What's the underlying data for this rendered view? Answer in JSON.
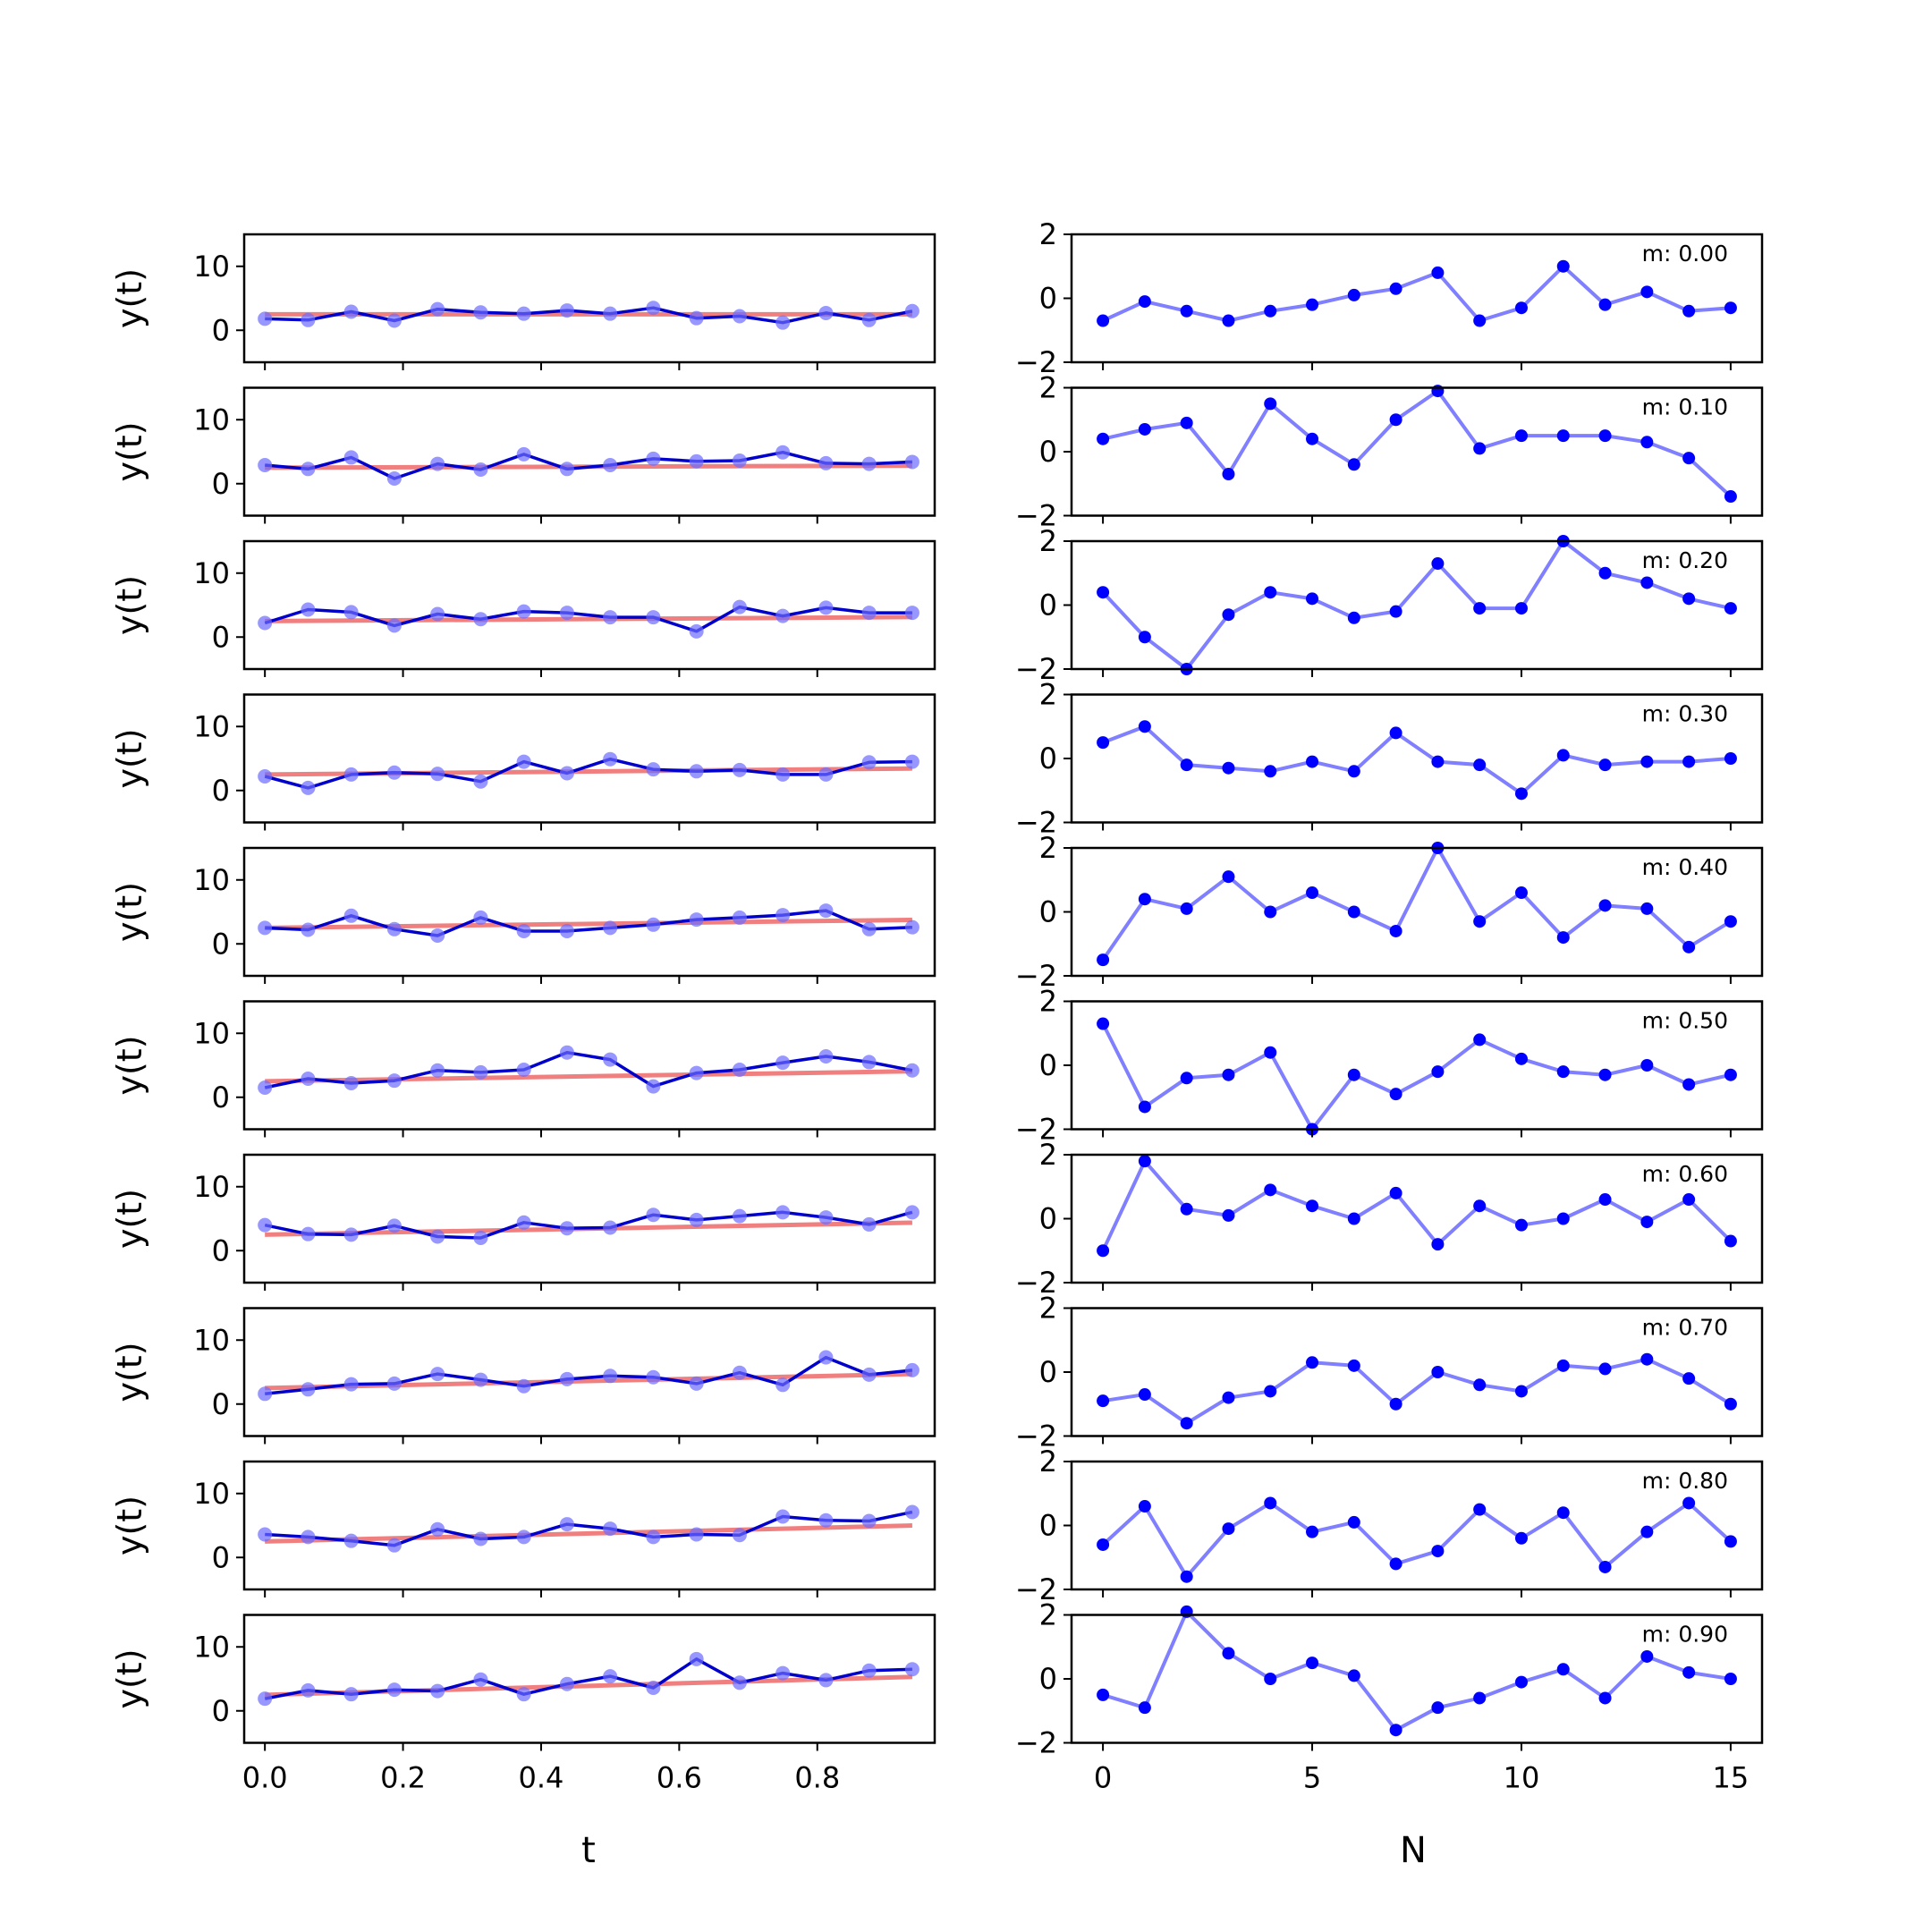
{
  "colors": {
    "data_line": "#0000cc",
    "data_points": "#6b6bff",
    "fit_line": "#f08080",
    "residual": "#0000ff"
  },
  "chart_data": [
    {
      "type": "line",
      "panel": "time-series",
      "xlabel": "t",
      "ylabel": "y(t)",
      "xlim": [
        -0.03,
        0.97
      ],
      "ylim": [
        -5,
        15
      ],
      "xticks": [
        "0.0",
        "0.2",
        "0.4",
        "0.6",
        "0.8"
      ],
      "yticks": [
        "0",
        "10"
      ],
      "x": [
        0.0,
        0.0625,
        0.125,
        0.1875,
        0.25,
        0.3125,
        0.375,
        0.4375,
        0.5,
        0.5625,
        0.625,
        0.6875,
        0.75,
        0.8125,
        0.875,
        0.9375
      ],
      "series": [
        {
          "m": 0.0,
          "intercept": 2.5,
          "y": [
            1.8,
            1.6,
            2.9,
            1.5,
            3.3,
            2.8,
            2.6,
            3.1,
            2.6,
            3.5,
            1.9,
            2.2,
            1.2,
            2.7,
            1.6,
            3.0
          ]
        },
        {
          "m": 0.1,
          "intercept": 2.5,
          "y": [
            2.9,
            2.3,
            4.1,
            0.8,
            3.1,
            2.2,
            4.6,
            2.3,
            2.9,
            3.9,
            3.5,
            3.6,
            4.9,
            3.2,
            3.1,
            3.4
          ]
        },
        {
          "m": 0.2,
          "intercept": 2.5,
          "y": [
            2.2,
            4.3,
            3.9,
            1.8,
            3.6,
            2.8,
            4.0,
            3.8,
            3.1,
            3.1,
            0.9,
            4.7,
            3.3,
            4.6,
            3.8,
            3.8
          ]
        },
        {
          "m": 0.3,
          "intercept": 2.5,
          "y": [
            2.2,
            0.4,
            2.5,
            2.8,
            2.6,
            1.4,
            4.5,
            2.7,
            4.9,
            3.3,
            3.0,
            3.2,
            2.5,
            2.5,
            4.4,
            4.5
          ]
        },
        {
          "m": 0.4,
          "intercept": 2.5,
          "y": [
            2.5,
            2.2,
            4.4,
            2.3,
            1.3,
            4.1,
            2.0,
            2.0,
            2.5,
            3.0,
            3.8,
            4.1,
            4.5,
            5.2,
            2.3,
            2.6
          ]
        },
        {
          "m": 0.5,
          "intercept": 2.5,
          "y": [
            1.5,
            2.9,
            2.2,
            2.6,
            4.2,
            3.9,
            4.3,
            7.0,
            5.9,
            1.7,
            3.8,
            4.3,
            5.4,
            6.4,
            5.5,
            4.2
          ]
        },
        {
          "m": 0.6,
          "intercept": 2.5,
          "y": [
            4.0,
            2.6,
            2.5,
            3.9,
            2.2,
            2.0,
            4.4,
            3.5,
            3.6,
            5.6,
            4.8,
            5.4,
            6.0,
            5.2,
            4.1,
            6.0
          ]
        },
        {
          "m": 0.7,
          "intercept": 2.5,
          "y": [
            1.6,
            2.3,
            3.1,
            3.2,
            4.7,
            3.8,
            2.8,
            3.9,
            4.4,
            4.2,
            3.2,
            4.9,
            3.0,
            7.3,
            4.6,
            5.3
          ]
        },
        {
          "m": 0.8,
          "intercept": 2.5,
          "y": [
            3.6,
            3.2,
            2.6,
            1.9,
            4.4,
            2.9,
            3.2,
            5.2,
            4.5,
            3.2,
            3.6,
            3.5,
            6.4,
            5.8,
            5.7,
            7.1
          ]
        },
        {
          "m": 0.9,
          "intercept": 2.5,
          "y": [
            1.9,
            3.2,
            2.6,
            3.3,
            3.1,
            4.9,
            2.6,
            4.2,
            5.4,
            3.6,
            8.1,
            4.4,
            5.9,
            4.8,
            6.3,
            6.5
          ]
        }
      ]
    },
    {
      "type": "line",
      "panel": "residuals",
      "xlabel": "N",
      "ylabel": "",
      "xlim": [
        -0.75,
        15.75
      ],
      "ylim": [
        -2,
        2
      ],
      "xticks": [
        "0",
        "5",
        "10",
        "15"
      ],
      "yticks": [
        "−2",
        "0",
        "2"
      ],
      "x": [
        0,
        1,
        2,
        3,
        4,
        5,
        6,
        7,
        8,
        9,
        10,
        11,
        12,
        13,
        14,
        15
      ],
      "series": [
        {
          "label": "m: 0.00",
          "y": [
            -0.7,
            -0.1,
            -0.4,
            -0.7,
            -0.4,
            -0.2,
            0.1,
            0.3,
            0.8,
            -0.7,
            -0.3,
            1.0,
            -0.2,
            0.2,
            -0.4,
            -0.3
          ]
        },
        {
          "label": "m: 0.10",
          "y": [
            0.4,
            0.7,
            0.9,
            -0.7,
            1.5,
            0.4,
            -0.4,
            1.0,
            1.9,
            0.1,
            0.5,
            0.5,
            0.5,
            0.3,
            -0.2,
            -1.4
          ]
        },
        {
          "label": "m: 0.20",
          "y": [
            0.4,
            -1.0,
            -2.0,
            -0.3,
            0.4,
            0.2,
            -0.4,
            -0.2,
            1.3,
            -0.1,
            -0.1,
            2.0,
            1.0,
            0.7,
            0.2,
            -0.1
          ]
        },
        {
          "label": "m: 0.30",
          "y": [
            0.5,
            1.0,
            -0.2,
            -0.3,
            -0.4,
            -0.1,
            -0.4,
            0.8,
            -0.1,
            -0.2,
            -1.1,
            0.1,
            -0.2,
            -0.1,
            -0.1,
            0.0
          ]
        },
        {
          "label": "m: 0.40",
          "y": [
            -1.5,
            0.4,
            0.1,
            1.1,
            0.0,
            0.6,
            0.0,
            -0.6,
            2.0,
            -0.3,
            0.6,
            -0.8,
            0.2,
            0.1,
            -1.1,
            -0.3
          ]
        },
        {
          "label": "m: 0.50",
          "y": [
            1.3,
            -1.3,
            -0.4,
            -0.3,
            0.4,
            -2.0,
            -0.3,
            -0.9,
            -0.2,
            0.8,
            0.2,
            -0.2,
            -0.3,
            0.0,
            -0.6,
            -0.3
          ]
        },
        {
          "label": "m: 0.60",
          "y": [
            -1.0,
            1.8,
            0.3,
            0.1,
            0.9,
            0.4,
            0.0,
            0.8,
            -0.8,
            0.4,
            -0.2,
            0.0,
            0.6,
            -0.1,
            0.6,
            -0.7
          ]
        },
        {
          "label": "m: 0.70",
          "y": [
            -0.9,
            -0.7,
            -1.6,
            -0.8,
            -0.6,
            0.3,
            0.2,
            -1.0,
            0.0,
            -0.4,
            -0.6,
            0.2,
            0.1,
            0.4,
            -0.2,
            -1.0
          ]
        },
        {
          "label": "m: 0.80",
          "y": [
            -0.6,
            0.6,
            -1.6,
            -0.1,
            0.7,
            -0.2,
            0.1,
            -1.2,
            -0.8,
            0.5,
            -0.4,
            0.4,
            -1.3,
            -0.2,
            0.7,
            -0.5
          ]
        },
        {
          "label": "m: 0.90",
          "y": [
            -0.5,
            -0.9,
            2.1,
            0.8,
            0.0,
            0.5,
            0.1,
            -1.6,
            -0.9,
            -0.6,
            -0.1,
            0.3,
            -0.6,
            0.7,
            0.2,
            0.0
          ]
        }
      ]
    }
  ]
}
